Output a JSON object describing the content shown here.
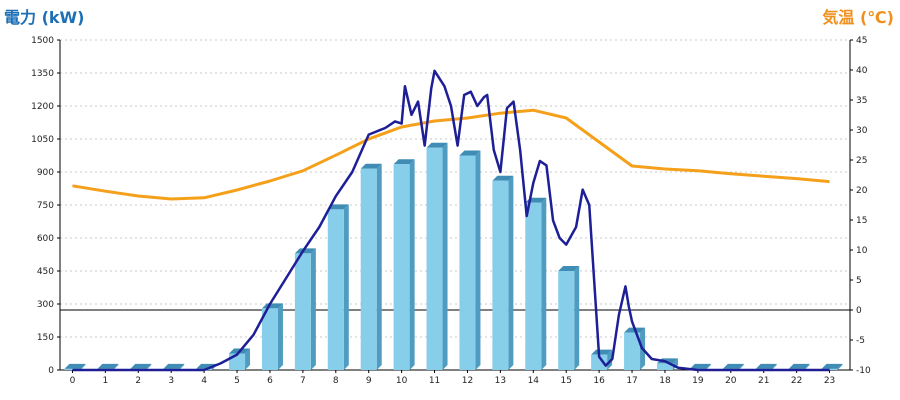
{
  "titles": {
    "left_axis": "電力 (kW)",
    "right_axis": "気温 (℃)"
  },
  "colors": {
    "bar_face": "#87ceea",
    "bar_side": "#4f9cc0",
    "bar_top": "#3f8db5",
    "power_line": "#1e1e96",
    "temp_line": "#f5a01a",
    "grid": "#c8c8c8"
  },
  "chart_data": {
    "type": "bar",
    "categories": [
      "0",
      "1",
      "2",
      "3",
      "4",
      "5",
      "6",
      "7",
      "8",
      "9",
      "10",
      "11",
      "12",
      "13",
      "14",
      "15",
      "16",
      "17",
      "18",
      "19",
      "20",
      "21",
      "22",
      "23"
    ],
    "y_left_ticks": [
      "0",
      "150",
      "300",
      "450",
      "600",
      "750",
      "900",
      "1050",
      "1200",
      "1350",
      "1500"
    ],
    "y_right_ticks": [
      "-10",
      "-5",
      "0",
      "5",
      "10",
      "15",
      "20",
      "25",
      "30",
      "35",
      "40",
      "45"
    ],
    "ylim_left": [
      0,
      1500
    ],
    "ylim_right": [
      -10,
      45
    ],
    "bars": [
      5,
      5,
      5,
      5,
      5,
      75,
      280,
      530,
      730,
      915,
      935,
      1010,
      975,
      860,
      760,
      450,
      70,
      170,
      30,
      5,
      5,
      5,
      5,
      5
    ],
    "power_line": [
      [
        0,
        0
      ],
      [
        4,
        0
      ],
      [
        4.5,
        30
      ],
      [
        5,
        70
      ],
      [
        5.5,
        160
      ],
      [
        6,
        300
      ],
      [
        6.5,
        420
      ],
      [
        7,
        540
      ],
      [
        7.5,
        650
      ],
      [
        8,
        790
      ],
      [
        8.5,
        900
      ],
      [
        9,
        1070
      ],
      [
        9.5,
        1100
      ],
      [
        9.8,
        1130
      ],
      [
        10,
        1120
      ],
      [
        10.1,
        1290
      ],
      [
        10.3,
        1160
      ],
      [
        10.5,
        1220
      ],
      [
        10.7,
        1020
      ],
      [
        10.9,
        1280
      ],
      [
        11,
        1360
      ],
      [
        11.3,
        1290
      ],
      [
        11.5,
        1200
      ],
      [
        11.7,
        1020
      ],
      [
        11.9,
        1250
      ],
      [
        12.1,
        1265
      ],
      [
        12.3,
        1200
      ],
      [
        12.5,
        1240
      ],
      [
        12.6,
        1250
      ],
      [
        12.8,
        1000
      ],
      [
        13,
        900
      ],
      [
        13.2,
        1190
      ],
      [
        13.4,
        1220
      ],
      [
        13.6,
        1000
      ],
      [
        13.8,
        700
      ],
      [
        14,
        850
      ],
      [
        14.2,
        950
      ],
      [
        14.4,
        930
      ],
      [
        14.6,
        680
      ],
      [
        14.8,
        600
      ],
      [
        15,
        570
      ],
      [
        15.3,
        650
      ],
      [
        15.5,
        820
      ],
      [
        15.7,
        750
      ],
      [
        16,
        60
      ],
      [
        16.2,
        20
      ],
      [
        16.4,
        50
      ],
      [
        16.6,
        250
      ],
      [
        16.8,
        380
      ],
      [
        16.9,
        290
      ],
      [
        17,
        220
      ],
      [
        17.3,
        100
      ],
      [
        17.6,
        50
      ],
      [
        18,
        40
      ],
      [
        18.4,
        10
      ],
      [
        19,
        0
      ],
      [
        23,
        0
      ]
    ],
    "temperature_line": [
      [
        0,
        20.7
      ],
      [
        1,
        19.8
      ],
      [
        2,
        19.0
      ],
      [
        3,
        18.5
      ],
      [
        4,
        18.7
      ],
      [
        5,
        20.0
      ],
      [
        6,
        21.5
      ],
      [
        7,
        23.2
      ],
      [
        8,
        25.8
      ],
      [
        9,
        28.5
      ],
      [
        10,
        30.5
      ],
      [
        11,
        31.5
      ],
      [
        12,
        32.0
      ],
      [
        13,
        32.8
      ],
      [
        14,
        33.3
      ],
      [
        15,
        32.0
      ],
      [
        16,
        28.0
      ],
      [
        17,
        24.0
      ],
      [
        18,
        23.5
      ],
      [
        19,
        23.2
      ],
      [
        20,
        22.7
      ],
      [
        21,
        22.3
      ],
      [
        22,
        21.9
      ],
      [
        23,
        21.4
      ]
    ],
    "grid": true
  }
}
